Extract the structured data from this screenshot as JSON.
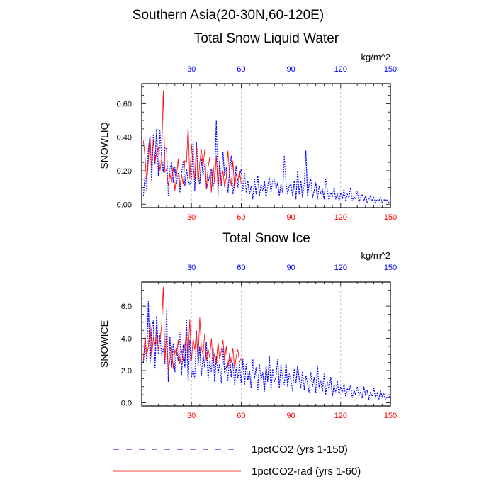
{
  "suptitle": "Southern Asia(20-30N,60-120E)",
  "legend": {
    "items": [
      {
        "label": "1pctCO2 (yrs 1-150)",
        "color": "#0000ff",
        "style": "dashed"
      },
      {
        "label": "1pctCO2-rad (yrs 1-60)",
        "color": "#ff0000",
        "style": "solid"
      }
    ]
  },
  "chart_data": [
    {
      "type": "line",
      "title": "Total Snow Liquid Water",
      "units": "kg/m^2",
      "ylabel": "SNOWLIQ",
      "xlim": [
        0,
        150
      ],
      "ylim": [
        -0.02,
        0.72
      ],
      "xticks": [
        "30",
        "60",
        "90",
        "120",
        "150"
      ],
      "yticks": [
        "0.00",
        "0.20",
        "0.40",
        "0.60"
      ],
      "ytick_values": [
        0,
        0.2,
        0.4,
        0.6
      ],
      "grid": "vertical-dashed",
      "series": [
        {
          "color": "#0000ff",
          "style": "dashed",
          "x_start": 1,
          "values": [
            0.05,
            0.17,
            0.08,
            0.33,
            0.41,
            0.14,
            0.42,
            0.24,
            0.45,
            0.17,
            0.44,
            0.28,
            0.19,
            0.34,
            0.33,
            0.05,
            0.21,
            0.25,
            0.13,
            0.22,
            0.12,
            0.19,
            0.07,
            0.18,
            0.26,
            0.11,
            0.21,
            0.14,
            0.12,
            0.15,
            0.38,
            0.08,
            0.37,
            0.19,
            0.12,
            0.27,
            0.17,
            0.24,
            0.09,
            0.13,
            0.17,
            0.21,
            0.09,
            0.16,
            0.5,
            0.05,
            0.26,
            0.11,
            0.31,
            0.17,
            0.22,
            0.07,
            0.2,
            0.29,
            0.06,
            0.14,
            0.23,
            0.1,
            0.17,
            0.21,
            0.08,
            0.19,
            0.07,
            0.14,
            0.06,
            0.11,
            0.03,
            0.15,
            0.06,
            0.17,
            0.05,
            0.12,
            0.08,
            0.14,
            0.04,
            0.11,
            0.16,
            0.07,
            0.14,
            0.15,
            0.09,
            0.13,
            0.05,
            0.12,
            0.07,
            0.29,
            0.13,
            0.06,
            0.11,
            0.12,
            0.05,
            0.14,
            0.03,
            0.2,
            0.06,
            0.14,
            0.04,
            0.12,
            0.32,
            0.05,
            0.12,
            0.15,
            0.04,
            0.08,
            0.13,
            0.03,
            0.11,
            0.06,
            0.09,
            0.03,
            0.15,
            0.08,
            0.02,
            0.07,
            0.05,
            0.1,
            0.03,
            0.06,
            0.02,
            0.07,
            0.03,
            0.09,
            0.02,
            0.06,
            0.04,
            0.1,
            0.02,
            0.05,
            0.03,
            0.08,
            0.01,
            0.04,
            0.06,
            0.02,
            0.05,
            0.01,
            0.03,
            0.05,
            0.02,
            0.04,
            0.01,
            0.03,
            0.02,
            0.04,
            0.01,
            0.03,
            0.02,
            0.03,
            0.01,
            0.02
          ]
        },
        {
          "color": "#ff0000",
          "style": "solid",
          "x_start": 1,
          "values": [
            0.38,
            0.28,
            0.13,
            0.26,
            0.4,
            0.21,
            0.39,
            0.25,
            0.31,
            0.34,
            0.2,
            0.27,
            0.68,
            0.19,
            0.21,
            0.11,
            0.18,
            0.13,
            0.22,
            0.08,
            0.17,
            0.27,
            0.1,
            0.18,
            0.12,
            0.26,
            0.25,
            0.47,
            0.15,
            0.36,
            0.21,
            0.15,
            0.35,
            0.11,
            0.25,
            0.33,
            0.22,
            0.33,
            0.09,
            0.22,
            0.28,
            0.07,
            0.24,
            0.13,
            0.29,
            0.09,
            0.23,
            0.12,
            0.2,
            0.1,
            0.16,
            0.32,
            0.18,
            0.11,
            0.26,
            0.09,
            0.18,
            0.14,
            0.2,
            0.12
          ]
        }
      ]
    },
    {
      "type": "line",
      "title": "Total Snow Ice",
      "units": "kg/m^2",
      "ylabel": "SNOWICE",
      "xlim": [
        0,
        150
      ],
      "ylim": [
        -0.2,
        7.5
      ],
      "xticks": [
        "30",
        "60",
        "90",
        "120",
        "150"
      ],
      "yticks": [
        "0.0",
        "2.0",
        "4.0",
        "6.0"
      ],
      "ytick_values": [
        0,
        2,
        4,
        6
      ],
      "grid": "vertical-dashed",
      "series": [
        {
          "color": "#0000ff",
          "style": "dashed",
          "x_start": 1,
          "values": [
            2.5,
            3.8,
            2.6,
            6.3,
            2.4,
            4.6,
            5.1,
            2.1,
            5.4,
            3.0,
            4.3,
            2.9,
            3.4,
            2.4,
            5.8,
            1.3,
            4.1,
            2.2,
            3.7,
            1.9,
            3.4,
            2.6,
            4.4,
            1.7,
            3.6,
            2.2,
            5.2,
            1.3,
            3.9,
            1.6,
            2.1,
            1.5,
            4.5,
            2.3,
            3.5,
            1.7,
            3.0,
            2.2,
            3.8,
            1.4,
            2.6,
            1.9,
            3.4,
            1.3,
            2.9,
            1.8,
            2.4,
            1.2,
            3.4,
            1.8,
            2.3,
            1.4,
            3.1,
            1.6,
            2.5,
            1.1,
            2.2,
            1.5,
            2.4,
            1.2,
            2.7,
            1.1,
            2.4,
            1.4,
            2.0,
            0.9,
            2.7,
            1.5,
            2.2,
            0.8,
            2.4,
            1.4,
            1.9,
            0.7,
            2.3,
            1.3,
            2.9,
            0.8,
            2.1,
            1.3,
            1.6,
            2.7,
            0.9,
            2.4,
            1.5,
            1.1,
            2.5,
            1.0,
            1.8,
            1.4,
            0.7,
            2.1,
            1.2,
            2.3,
            1.5,
            0.9,
            2.0,
            0.8,
            1.7,
            1.2,
            0.6,
            1.9,
            1.0,
            1.6,
            0.6,
            2.3,
            0.9,
            1.4,
            0.7,
            1.8,
            0.5,
            1.3,
            0.8,
            1.6,
            0.4,
            1.1,
            0.6,
            1.4,
            0.5,
            1.0,
            0.6,
            1.2,
            0.4,
            0.9,
            0.7,
            1.1,
            0.3,
            0.8,
            0.5,
            1.0,
            0.4,
            0.7,
            0.3,
            1.0,
            0.5,
            0.8,
            0.2,
            0.7,
            0.4,
            0.9,
            0.3,
            0.6,
            0.2,
            0.7,
            0.4,
            0.6,
            0.2,
            0.4,
            0.3,
            0.5
          ]
        },
        {
          "color": "#ff0000",
          "style": "solid",
          "x_start": 1,
          "values": [
            2.6,
            4.2,
            2.9,
            3.5,
            5.0,
            2.8,
            4.1,
            3.6,
            4.4,
            3.3,
            3.9,
            4.8,
            7.2,
            2.6,
            4.2,
            2.0,
            2.6,
            3.5,
            2.1,
            3.3,
            2.9,
            3.9,
            2.4,
            3.3,
            2.6,
            3.6,
            4.3,
            2.8,
            5.2,
            2.6,
            4.0,
            3.3,
            4.4,
            2.7,
            5.3,
            3.4,
            3.0,
            4.3,
            2.6,
            3.4,
            2.8,
            4.0,
            2.5,
            3.1,
            2.4,
            3.8,
            2.7,
            3.2,
            3.9,
            2.6,
            3.5,
            2.2,
            3.0,
            2.5,
            3.4,
            2.1,
            2.9,
            3.3,
            2.5,
            2.8
          ]
        }
      ]
    }
  ]
}
